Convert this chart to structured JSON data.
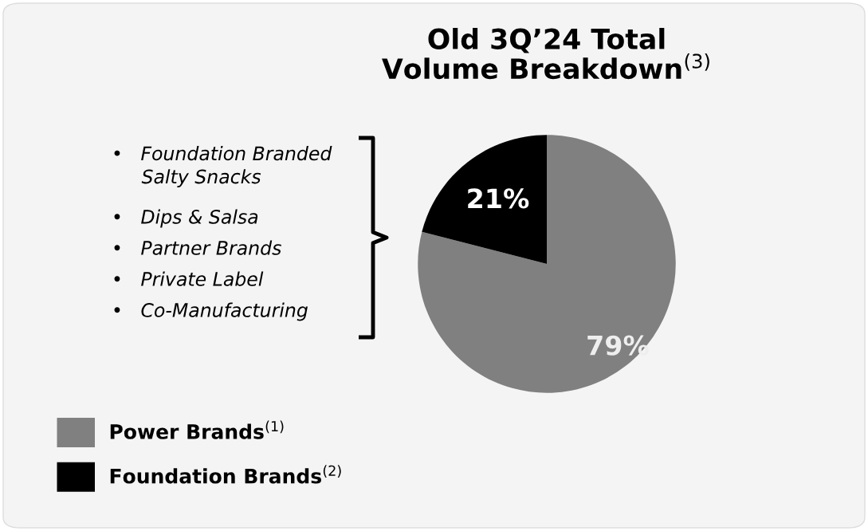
{
  "chart_data": {
    "type": "pie",
    "title": "Old 3Q’24 Total\nVolume Breakdown$^{(3)}$",
    "categories": [
      "Power Brands$^{(1)}$",
      "Foundation Brands$^{(2)}$"
    ],
    "values": [
      79,
      21
    ],
    "colors": [
      "#808080",
      "#000000"
    ],
    "value_labels": [
      "79%",
      "21%"
    ],
    "legend": "bottom left",
    "annotations": [
      "•   Foundation Branded\n     Salty Snacks",
      "•   Dips & Salsa",
      "•   Partner Brands",
      "•   Private Label",
      "•   Co-Manufacturing"
    ]
  }
}
